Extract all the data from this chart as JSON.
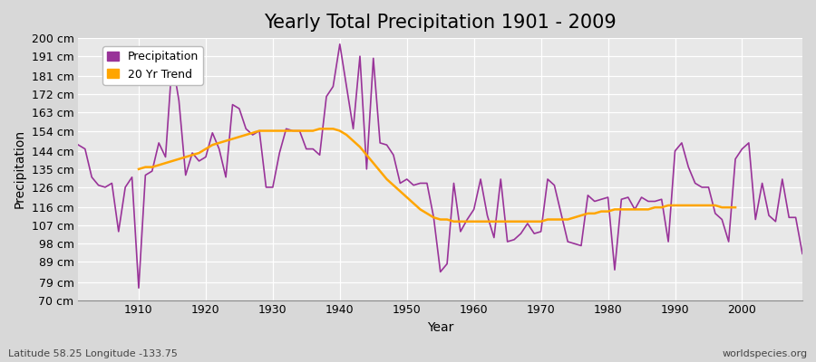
{
  "title": "Yearly Total Precipitation 1901 - 2009",
  "xlabel": "Year",
  "ylabel": "Precipitation",
  "subtitle": "Latitude 58.25 Longitude -133.75",
  "watermark": "worldspecies.org",
  "years": [
    1901,
    1902,
    1903,
    1904,
    1905,
    1906,
    1907,
    1908,
    1909,
    1910,
    1911,
    1912,
    1913,
    1914,
    1915,
    1916,
    1917,
    1918,
    1919,
    1920,
    1921,
    1922,
    1923,
    1924,
    1925,
    1926,
    1927,
    1928,
    1929,
    1930,
    1931,
    1932,
    1933,
    1934,
    1935,
    1936,
    1937,
    1938,
    1939,
    1940,
    1941,
    1942,
    1943,
    1944,
    1945,
    1946,
    1947,
    1948,
    1949,
    1950,
    1951,
    1952,
    1953,
    1954,
    1955,
    1956,
    1957,
    1958,
    1959,
    1960,
    1961,
    1962,
    1963,
    1964,
    1965,
    1966,
    1967,
    1968,
    1969,
    1970,
    1971,
    1972,
    1973,
    1974,
    1975,
    1976,
    1977,
    1978,
    1979,
    1980,
    1981,
    1982,
    1983,
    1984,
    1985,
    1986,
    1987,
    1988,
    1989,
    1990,
    1991,
    1992,
    1993,
    1994,
    1995,
    1996,
    1997,
    1998,
    1999,
    2000,
    2001,
    2002,
    2003,
    2004,
    2005,
    2006,
    2007,
    2008,
    2009
  ],
  "precip": [
    147,
    145,
    131,
    127,
    126,
    128,
    104,
    126,
    131,
    76,
    132,
    134,
    148,
    141,
    189,
    169,
    132,
    143,
    139,
    141,
    153,
    145,
    131,
    167,
    165,
    155,
    152,
    154,
    126,
    126,
    143,
    155,
    154,
    154,
    145,
    145,
    142,
    171,
    176,
    197,
    176,
    155,
    191,
    135,
    190,
    148,
    147,
    142,
    128,
    130,
    127,
    128,
    128,
    111,
    84,
    88,
    128,
    104,
    110,
    115,
    130,
    112,
    101,
    130,
    99,
    100,
    103,
    108,
    103,
    104,
    130,
    127,
    113,
    99,
    98,
    97,
    122,
    119,
    120,
    121,
    85,
    120,
    121,
    115,
    121,
    119,
    119,
    120,
    99,
    144,
    148,
    136,
    128,
    126,
    126,
    113,
    110,
    99,
    140,
    145,
    148,
    110,
    128,
    112,
    109,
    130,
    111,
    111,
    93
  ],
  "trend": [
    null,
    null,
    null,
    null,
    null,
    null,
    null,
    null,
    null,
    135,
    136,
    136,
    137,
    138,
    139,
    140,
    141,
    142,
    143,
    145,
    147,
    148,
    149,
    150,
    151,
    152,
    153,
    154,
    154,
    154,
    154,
    154,
    154,
    154,
    154,
    154,
    155,
    155,
    155,
    154,
    152,
    149,
    146,
    142,
    138,
    134,
    130,
    127,
    124,
    121,
    118,
    115,
    113,
    111,
    110,
    110,
    109,
    109,
    109,
    109,
    109,
    109,
    109,
    109,
    109,
    109,
    109,
    109,
    109,
    109,
    110,
    110,
    110,
    110,
    111,
    112,
    113,
    113,
    114,
    114,
    115,
    115,
    115,
    115,
    115,
    115,
    116,
    116,
    117,
    117,
    117,
    117,
    117,
    117,
    117,
    117,
    116,
    116,
    116,
    null,
    null,
    null,
    null,
    null,
    null,
    null,
    null,
    null,
    null
  ],
  "precip_color": "#993399",
  "trend_color": "#FFA500",
  "bg_color": "#D8D8D8",
  "plot_bg_color": "#E8E8E8",
  "grid_color": "#FFFFFF",
  "ylim": [
    70,
    200
  ],
  "yticks": [
    70,
    79,
    89,
    98,
    107,
    116,
    126,
    135,
    144,
    154,
    163,
    172,
    181,
    191,
    200
  ],
  "ytick_labels": [
    "70 cm",
    "79 cm",
    "89 cm",
    "98 cm",
    "107 cm",
    "116 cm",
    "126 cm",
    "135 cm",
    "144 cm",
    "154 cm",
    "163 cm",
    "172 cm",
    "181 cm",
    "191 cm",
    "200 cm"
  ],
  "xticks": [
    1910,
    1920,
    1930,
    1940,
    1950,
    1960,
    1970,
    1980,
    1990,
    2000
  ],
  "xlim": [
    1901,
    2009
  ],
  "title_fontsize": 15,
  "axis_fontsize": 10,
  "tick_fontsize": 9,
  "legend_fontsize": 9
}
